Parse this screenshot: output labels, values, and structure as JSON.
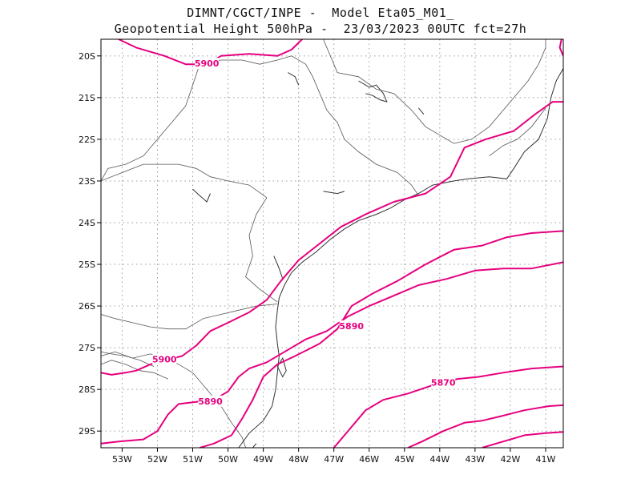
{
  "header": {
    "line1": "DIMNT/CGCT/INPE -  Model Eta05_M01_",
    "line2": "Geopotential Height 500hPa -  23/03/2023 00UTC fct=27h"
  },
  "chart_data": {
    "type": "contour-map",
    "field": "Geopotential Height 500hPa",
    "xlim": [
      -53.6,
      -40.5
    ],
    "ylim": [
      -29.4,
      -19.6
    ],
    "grid": true,
    "lon_ticks": [
      {
        "v": -53,
        "label": "53W"
      },
      {
        "v": -52,
        "label": "52W"
      },
      {
        "v": -51,
        "label": "51W"
      },
      {
        "v": -50,
        "label": "50W"
      },
      {
        "v": -49,
        "label": "49W"
      },
      {
        "v": -48,
        "label": "48W"
      },
      {
        "v": -47,
        "label": "47W"
      },
      {
        "v": -46,
        "label": "46W"
      },
      {
        "v": -45,
        "label": "45W"
      },
      {
        "v": -44,
        "label": "44W"
      },
      {
        "v": -43,
        "label": "43W"
      },
      {
        "v": -42,
        "label": "42W"
      },
      {
        "v": -41,
        "label": "41W"
      }
    ],
    "lat_ticks": [
      {
        "v": -20,
        "label": "20S"
      },
      {
        "v": -21,
        "label": "21S"
      },
      {
        "v": -22,
        "label": "22S"
      },
      {
        "v": -23,
        "label": "23S"
      },
      {
        "v": -24,
        "label": "24S"
      },
      {
        "v": -25,
        "label": "25S"
      },
      {
        "v": -26,
        "label": "26S"
      },
      {
        "v": -27,
        "label": "27S"
      },
      {
        "v": -28,
        "label": "28S"
      },
      {
        "v": -29,
        "label": "29S"
      }
    ],
    "contour_color": "#e6007e",
    "contours": [
      {
        "level": 5900,
        "points": [
          [
            -53.1,
            -19.6
          ],
          [
            -52.6,
            -19.8
          ],
          [
            -51.8,
            -20.0
          ],
          [
            -51.2,
            -20.2
          ],
          [
            -50.6,
            -20.2
          ],
          [
            -50.2,
            -20.0
          ],
          [
            -49.4,
            -19.95
          ],
          [
            -48.6,
            -20.0
          ],
          [
            -48.2,
            -19.85
          ],
          [
            -47.9,
            -19.6
          ]
        ]
      },
      {
        "level": 5900,
        "points": [
          [
            -53.6,
            -27.6
          ],
          [
            -53.3,
            -27.65
          ],
          [
            -52.9,
            -27.6
          ],
          [
            -52.6,
            -27.55
          ],
          [
            -52.2,
            -27.4
          ],
          [
            -51.8,
            -27.3
          ],
          [
            -51.3,
            -27.2
          ],
          [
            -50.9,
            -26.95
          ],
          [
            -50.5,
            -26.6
          ],
          [
            -50.0,
            -26.4
          ],
          [
            -49.4,
            -26.15
          ],
          [
            -48.9,
            -25.85
          ],
          [
            -48.5,
            -25.4
          ],
          [
            -48.0,
            -24.9
          ],
          [
            -47.4,
            -24.5
          ],
          [
            -46.8,
            -24.1
          ],
          [
            -46.1,
            -23.8
          ],
          [
            -45.3,
            -23.5
          ],
          [
            -44.4,
            -23.3
          ],
          [
            -43.7,
            -22.9
          ],
          [
            -43.3,
            -22.2
          ],
          [
            -42.7,
            -22.0
          ],
          [
            -41.9,
            -21.8
          ],
          [
            -41.3,
            -21.4
          ],
          [
            -40.8,
            -21.1
          ],
          [
            -40.5,
            -21.1
          ]
        ]
      },
      {
        "level": 5900,
        "points": [
          [
            -40.5,
            -20.0
          ],
          [
            -40.6,
            -19.8
          ],
          [
            -40.55,
            -19.6
          ]
        ]
      },
      {
        "level": 5890,
        "points": [
          [
            -50.8,
            -29.4
          ],
          [
            -50.4,
            -29.3
          ],
          [
            -49.9,
            -29.1
          ],
          [
            -49.6,
            -28.7
          ],
          [
            -49.3,
            -28.25
          ],
          [
            -49.0,
            -27.7
          ],
          [
            -48.6,
            -27.4
          ],
          [
            -48.1,
            -27.2
          ],
          [
            -47.4,
            -26.9
          ],
          [
            -46.9,
            -26.55
          ],
          [
            -46.5,
            -26.0
          ],
          [
            -45.9,
            -25.7
          ],
          [
            -45.2,
            -25.4
          ],
          [
            -44.4,
            -25.0
          ],
          [
            -43.6,
            -24.65
          ],
          [
            -42.8,
            -24.55
          ],
          [
            -42.1,
            -24.35
          ],
          [
            -41.4,
            -24.25
          ],
          [
            -40.5,
            -24.2
          ]
        ]
      },
      {
        "level": 5890,
        "points": [
          [
            -53.6,
            -29.3
          ],
          [
            -53.1,
            -29.25
          ],
          [
            -52.4,
            -29.2
          ],
          [
            -52.0,
            -29.0
          ],
          [
            -51.7,
            -28.6
          ],
          [
            -51.4,
            -28.35
          ],
          [
            -50.9,
            -28.3
          ],
          [
            -50.4,
            -28.25
          ],
          [
            -50.0,
            -28.05
          ],
          [
            -49.7,
            -27.7
          ],
          [
            -49.4,
            -27.5
          ],
          [
            -48.9,
            -27.35
          ],
          [
            -48.4,
            -27.1
          ],
          [
            -47.8,
            -26.8
          ],
          [
            -47.2,
            -26.6
          ],
          [
            -46.6,
            -26.25
          ],
          [
            -46.0,
            -26.0
          ],
          [
            -45.3,
            -25.75
          ],
          [
            -44.6,
            -25.5
          ],
          [
            -43.8,
            -25.35
          ],
          [
            -43.0,
            -25.15
          ],
          [
            -42.2,
            -25.1
          ],
          [
            -41.4,
            -25.1
          ],
          [
            -40.5,
            -24.95
          ]
        ]
      },
      {
        "level": 5870,
        "points": [
          [
            -47.0,
            -29.4
          ],
          [
            -46.5,
            -28.9
          ],
          [
            -46.1,
            -28.5
          ],
          [
            -45.6,
            -28.25
          ],
          [
            -44.9,
            -28.1
          ],
          [
            -44.2,
            -27.9
          ],
          [
            -43.5,
            -27.75
          ],
          [
            -42.9,
            -27.7
          ],
          [
            -42.2,
            -27.6
          ],
          [
            -41.4,
            -27.5
          ],
          [
            -40.5,
            -27.45
          ]
        ]
      },
      {
        "level": 5870,
        "points": [
          [
            -44.9,
            -29.4
          ],
          [
            -44.5,
            -29.25
          ],
          [
            -43.9,
            -29.0
          ],
          [
            -43.3,
            -28.8
          ],
          [
            -42.8,
            -28.75
          ],
          [
            -42.3,
            -28.65
          ],
          [
            -41.6,
            -28.5
          ],
          [
            -40.9,
            -28.4
          ],
          [
            -40.5,
            -28.38
          ]
        ]
      },
      {
        "level": 5870,
        "points": [
          [
            -42.8,
            -29.4
          ],
          [
            -42.2,
            -29.25
          ],
          [
            -41.6,
            -29.1
          ],
          [
            -41.0,
            -29.05
          ],
          [
            -40.5,
            -29.02
          ]
        ]
      }
    ],
    "contour_labels": [
      {
        "text": "5900",
        "lon": -50.6,
        "lat": -20.2
      },
      {
        "text": "5900",
        "lon": -51.8,
        "lat": -27.3
      },
      {
        "text": "5890",
        "lon": -46.5,
        "lat": -26.5
      },
      {
        "text": "5890",
        "lon": -50.5,
        "lat": -28.3
      },
      {
        "text": "5870",
        "lon": -43.9,
        "lat": -27.85
      }
    ],
    "boundaries": [
      [
        [
          -53.6,
          -23.0
        ],
        [
          -53.4,
          -22.7
        ],
        [
          -52.9,
          -22.6
        ],
        [
          -52.4,
          -22.4
        ],
        [
          -52.0,
          -22.0
        ],
        [
          -51.6,
          -21.6
        ],
        [
          -51.2,
          -21.2
        ],
        [
          -51.0,
          -20.7
        ],
        [
          -50.8,
          -20.2
        ],
        [
          -50.2,
          -20.1
        ],
        [
          -49.6,
          -20.1
        ],
        [
          -49.1,
          -20.2
        ],
        [
          -48.6,
          -20.1
        ],
        [
          -48.2,
          -20.0
        ],
        [
          -47.8,
          -20.2
        ],
        [
          -47.6,
          -20.5
        ],
        [
          -47.4,
          -20.9
        ],
        [
          -47.2,
          -21.3
        ],
        [
          -46.9,
          -21.6
        ],
        [
          -46.7,
          -22.0
        ],
        [
          -46.3,
          -22.3
        ],
        [
          -45.8,
          -22.6
        ],
        [
          -45.2,
          -22.8
        ],
        [
          -44.8,
          -23.1
        ],
        [
          -44.6,
          -23.35
        ]
      ],
      [
        [
          -47.3,
          -19.6
        ],
        [
          -47.1,
          -20.0
        ],
        [
          -46.9,
          -20.4
        ],
        [
          -46.3,
          -20.5
        ],
        [
          -45.8,
          -20.8
        ],
        [
          -45.3,
          -20.9
        ],
        [
          -44.8,
          -21.3
        ],
        [
          -44.4,
          -21.7
        ],
        [
          -44.0,
          -21.9
        ],
        [
          -43.6,
          -22.1
        ],
        [
          -43.1,
          -22.0
        ],
        [
          -42.6,
          -21.7
        ],
        [
          -42.2,
          -21.3
        ],
        [
          -41.9,
          -21.0
        ],
        [
          -41.5,
          -20.6
        ],
        [
          -41.2,
          -20.2
        ],
        [
          -41.0,
          -19.8
        ],
        [
          -41.0,
          -19.6
        ]
      ],
      [
        [
          -42.6,
          -22.4
        ],
        [
          -42.2,
          -22.15
        ],
        [
          -41.8,
          -22.0
        ],
        [
          -41.4,
          -21.7
        ],
        [
          -41.0,
          -21.25
        ]
      ],
      [
        [
          -48.9,
          -23.4
        ],
        [
          -49.4,
          -23.1
        ],
        [
          -50.0,
          -23.0
        ],
        [
          -50.5,
          -22.9
        ],
        [
          -50.9,
          -22.7
        ],
        [
          -51.4,
          -22.6
        ],
        [
          -51.9,
          -22.6
        ],
        [
          -52.4,
          -22.6
        ],
        [
          -53.0,
          -22.8
        ],
        [
          -53.6,
          -23.0
        ]
      ],
      [
        [
          -48.9,
          -23.4
        ],
        [
          -49.2,
          -23.8
        ],
        [
          -49.4,
          -24.3
        ],
        [
          -49.3,
          -24.8
        ],
        [
          -49.5,
          -25.3
        ],
        [
          -49.1,
          -25.6
        ],
        [
          -48.6,
          -25.9
        ]
      ],
      [
        [
          -53.6,
          -26.2
        ],
        [
          -53.2,
          -26.3
        ],
        [
          -52.7,
          -26.4
        ],
        [
          -52.2,
          -26.5
        ],
        [
          -51.7,
          -26.55
        ],
        [
          -51.2,
          -26.55
        ],
        [
          -50.7,
          -26.3
        ],
        [
          -50.2,
          -26.2
        ],
        [
          -49.7,
          -26.1
        ],
        [
          -49.2,
          -26.0
        ],
        [
          -48.6,
          -25.95
        ]
      ],
      [
        [
          -53.6,
          -27.2
        ],
        [
          -53.2,
          -27.1
        ],
        [
          -52.7,
          -27.25
        ],
        [
          -52.2,
          -27.15
        ],
        [
          -51.6,
          -27.3
        ],
        [
          -51.0,
          -27.6
        ],
        [
          -50.6,
          -28.0
        ],
        [
          -50.2,
          -28.4
        ],
        [
          -49.9,
          -28.8
        ],
        [
          -49.6,
          -29.15
        ],
        [
          -49.5,
          -29.4
        ]
      ],
      [
        [
          -53.6,
          -27.4
        ],
        [
          -53.3,
          -27.3
        ],
        [
          -52.9,
          -27.4
        ],
        [
          -52.5,
          -27.55
        ],
        [
          -52.1,
          -27.6
        ],
        [
          -51.7,
          -27.75
        ]
      ],
      [
        [
          -53.6,
          -27.1
        ],
        [
          -53.3,
          -27.15
        ],
        [
          -52.9,
          -27.2
        ],
        [
          -52.5,
          -27.3
        ],
        [
          -52.1,
          -27.45
        ]
      ]
    ],
    "coastline": [
      [
        [
          -49.7,
          -29.4
        ],
        [
          -49.4,
          -29.05
        ],
        [
          -49.0,
          -28.75
        ],
        [
          -48.75,
          -28.4
        ],
        [
          -48.65,
          -28.0
        ],
        [
          -48.6,
          -27.6
        ],
        [
          -48.55,
          -27.2
        ],
        [
          -48.6,
          -26.9
        ],
        [
          -48.65,
          -26.5
        ],
        [
          -48.6,
          -26.1
        ],
        [
          -48.55,
          -25.8
        ],
        [
          -48.4,
          -25.5
        ],
        [
          -48.2,
          -25.2
        ],
        [
          -47.9,
          -24.95
        ],
        [
          -47.5,
          -24.7
        ],
        [
          -47.1,
          -24.4
        ],
        [
          -46.7,
          -24.15
        ],
        [
          -46.3,
          -23.95
        ],
        [
          -45.8,
          -23.8
        ],
        [
          -45.4,
          -23.65
        ],
        [
          -45.0,
          -23.45
        ],
        [
          -44.6,
          -23.3
        ],
        [
          -44.2,
          -23.1
        ],
        [
          -43.6,
          -23.0
        ],
        [
          -43.2,
          -22.95
        ],
        [
          -42.6,
          -22.9
        ],
        [
          -42.1,
          -22.95
        ],
        [
          -41.9,
          -22.7
        ],
        [
          -41.6,
          -22.3
        ],
        [
          -41.2,
          -22.0
        ],
        [
          -40.95,
          -21.5
        ],
        [
          -40.85,
          -21.0
        ],
        [
          -40.7,
          -20.6
        ],
        [
          -40.5,
          -20.3
        ]
      ],
      [
        [
          -48.6,
          -27.45
        ],
        [
          -48.45,
          -27.7
        ],
        [
          -48.35,
          -27.55
        ],
        [
          -48.45,
          -27.25
        ],
        [
          -48.6,
          -27.45
        ]
      ],
      [
        [
          -49.3,
          -29.4
        ],
        [
          -49.2,
          -29.3
        ]
      ]
    ],
    "water_bodies": [
      [
        [
          -46.3,
          -20.6
        ],
        [
          -46.0,
          -20.75
        ],
        [
          -45.8,
          -20.7
        ],
        [
          -45.6,
          -20.9
        ],
        [
          -45.5,
          -21.1
        ],
        [
          -45.7,
          -21.05
        ],
        [
          -45.9,
          -20.95
        ],
        [
          -46.1,
          -20.9
        ]
      ],
      [
        [
          -47.3,
          -23.25
        ],
        [
          -46.9,
          -23.3
        ],
        [
          -46.7,
          -23.25
        ]
      ],
      [
        [
          -51.0,
          -23.2
        ],
        [
          -50.8,
          -23.35
        ],
        [
          -50.6,
          -23.5
        ],
        [
          -50.5,
          -23.3
        ]
      ],
      [
        [
          -48.7,
          -24.8
        ],
        [
          -48.55,
          -25.1
        ],
        [
          -48.45,
          -25.35
        ]
      ],
      [
        [
          -48.3,
          -20.4
        ],
        [
          -48.1,
          -20.5
        ],
        [
          -48.0,
          -20.7
        ]
      ],
      [
        [
          -44.6,
          -21.25
        ],
        [
          -44.45,
          -21.4
        ]
      ]
    ]
  }
}
